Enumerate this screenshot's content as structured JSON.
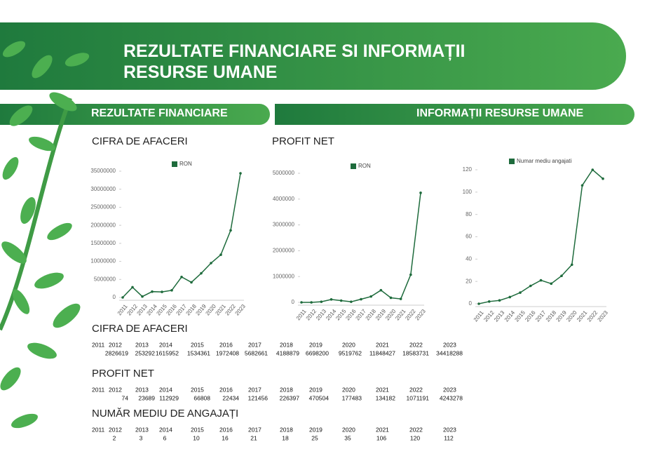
{
  "header": {
    "title": "REZULTATE FINANCIARE SI INFORMAȚII RESURSE UMANE"
  },
  "sections": {
    "left": "REZULTATE FINANCIARE",
    "right": "INFORMAȚII RESURSE UMANE"
  },
  "chart_data": [
    {
      "type": "line",
      "title": "CIFRA DE AFACERI",
      "categories": [
        "2011",
        "2012",
        "2013",
        "2014",
        "2015",
        "2016",
        "2017",
        "2018",
        "2019",
        "2020",
        "2021",
        "2022",
        "2023"
      ],
      "series": [
        {
          "name": "RON",
          "color": "#1e6b3c",
          "values": [
            0,
            2826619,
            253292,
            1615952,
            1534361,
            1972408,
            5682661,
            4188879,
            6698200,
            9519762,
            11848427,
            18583731,
            34418288
          ]
        }
      ],
      "ylim": [
        0,
        35000000
      ],
      "yticks": [
        0,
        5000000,
        10000000,
        15000000,
        20000000,
        25000000,
        30000000,
        35000000
      ]
    },
    {
      "type": "line",
      "title": "PROFIT NET",
      "categories": [
        "2011",
        "2012",
        "2013",
        "2014",
        "2015",
        "2016",
        "2017",
        "2018",
        "2019",
        "2020",
        "2021",
        "2022",
        "2023"
      ],
      "series": [
        {
          "name": "RON",
          "color": "#1e6b3c",
          "values": [
            0,
            74,
            23689,
            112929,
            66808,
            22434,
            121456,
            226397,
            470504,
            177483,
            134182,
            1071191,
            4243278
          ]
        }
      ],
      "ylim": [
        0,
        5000000
      ],
      "yticks": [
        0,
        1000000,
        2000000,
        3000000,
        4000000,
        5000000
      ]
    },
    {
      "type": "line",
      "categories": [
        "2011",
        "2012",
        "2013",
        "2014",
        "2015",
        "2016",
        "2017",
        "2018",
        "2019",
        "2020",
        "2021",
        "2022",
        "2023"
      ],
      "series": [
        {
          "name": "Numar mediu angajati",
          "color": "#1e6b3c",
          "values": [
            0,
            2,
            3,
            6,
            10,
            16,
            21,
            18,
            25,
            35,
            106,
            120,
            112
          ]
        }
      ],
      "ylim": [
        0,
        120
      ],
      "yticks": [
        0,
        20,
        40,
        60,
        80,
        100,
        120
      ]
    }
  ],
  "tables": [
    {
      "title": "CIFRA DE AFACERI",
      "years": [
        2011,
        2012,
        2013,
        2014,
        2015,
        2016,
        2017,
        2018,
        2019,
        2020,
        2021,
        2022,
        2023
      ],
      "values": [
        null,
        2826619,
        253292,
        1615952,
        1534361,
        1972408,
        5682661,
        4188879,
        6698200,
        9519762,
        11848427,
        18583731,
        34418288
      ]
    },
    {
      "title": "PROFIT NET",
      "years": [
        2011,
        2012,
        2013,
        2014,
        2015,
        2016,
        2017,
        2018,
        2019,
        2020,
        2021,
        2022,
        2023
      ],
      "values": [
        null,
        74,
        23689,
        112929,
        66808,
        22434,
        121456,
        226397,
        470504,
        177483,
        134182,
        1071191,
        4243278
      ]
    },
    {
      "title": "NUMĂR MEDIU DE ANGAJAȚI",
      "years": [
        2011,
        2012,
        2013,
        2014,
        2015,
        2016,
        2017,
        2018,
        2019,
        2020,
        2021,
        2022,
        2023
      ],
      "values": [
        null,
        2,
        3,
        6,
        10,
        16,
        21,
        18,
        25,
        35,
        106,
        120,
        112
      ]
    }
  ]
}
